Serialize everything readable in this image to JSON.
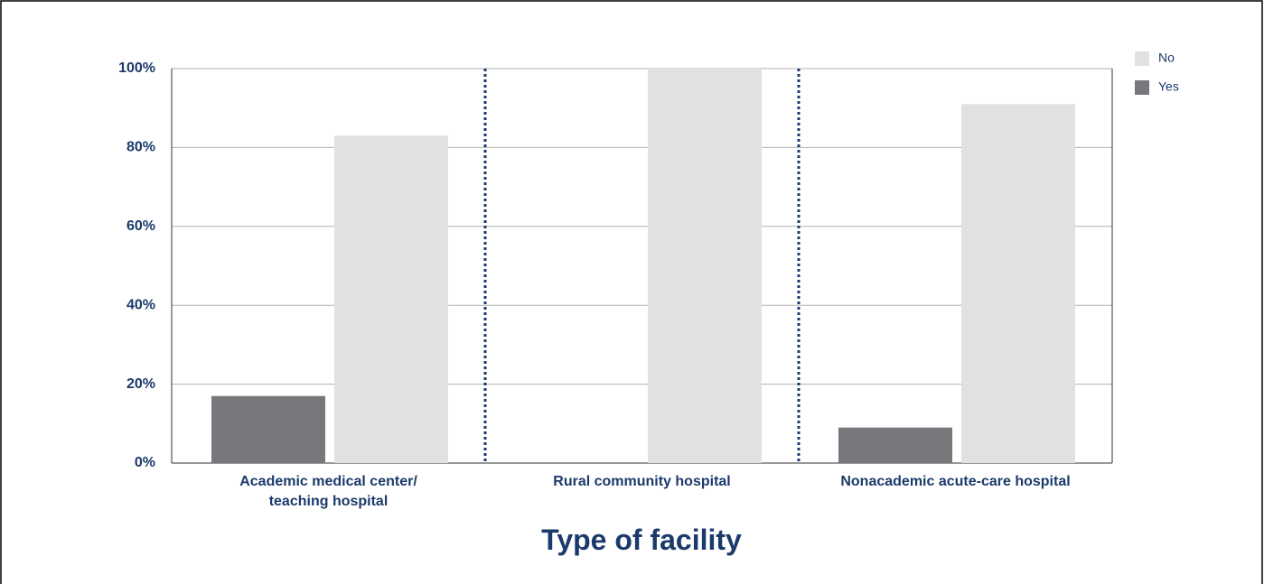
{
  "chart_data": {
    "type": "bar",
    "xlabel": "Type of facility",
    "categories": [
      "Academic medical center/\nteaching hospital",
      "Rural community hospital",
      "Nonacademic acute-care hospital"
    ],
    "series": [
      {
        "name": "Yes",
        "color": "#77787b",
        "values": [
          17,
          0,
          9
        ]
      },
      {
        "name": "No",
        "color": "#e0e1e3",
        "values": [
          83,
          100,
          91
        ]
      }
    ],
    "ylim": [
      0,
      100
    ],
    "yticks": [
      {
        "value": 0,
        "label": "0%"
      },
      {
        "value": 20,
        "label": "20%"
      },
      {
        "value": 40,
        "label": "40%"
      },
      {
        "value": 60,
        "label": "60%"
      },
      {
        "value": 80,
        "label": "80%"
      },
      {
        "value": 100,
        "label": "100%"
      }
    ],
    "grid": true,
    "legend": "top-right"
  }
}
